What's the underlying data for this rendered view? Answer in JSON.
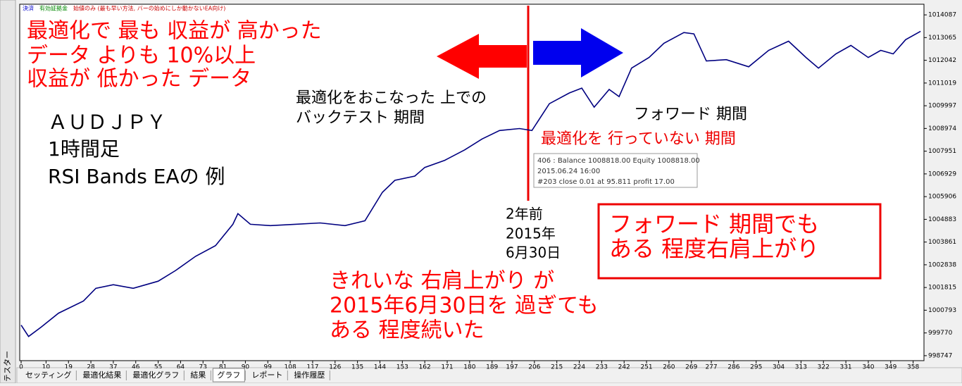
{
  "header": [
    {
      "text": "決済",
      "color": "#0000cc"
    },
    {
      "text": "有効証拠金",
      "color": "#008800"
    },
    {
      "text": "始値のみ (最も早い方法, バーの始めにしか動かないEA向け)",
      "color": "#cc0000"
    }
  ],
  "side_label": "テスター",
  "chart_data": {
    "type": "line",
    "color": "#000080",
    "x": [
      0,
      3,
      8,
      15,
      25,
      30,
      37,
      45,
      55,
      62,
      70,
      78,
      85,
      87,
      92,
      100,
      110,
      120,
      130,
      138,
      145,
      150,
      158,
      162,
      170,
      178,
      185,
      192,
      200,
      205,
      212,
      220,
      225,
      230,
      236,
      240,
      245,
      252,
      258,
      266,
      270,
      275,
      283,
      292,
      300,
      308,
      315,
      320,
      327,
      333,
      340,
      345,
      350,
      355,
      361
    ],
    "values": [
      1000120,
      999610,
      1000030,
      1000660,
      1001210,
      1001780,
      1001940,
      1001780,
      1002100,
      1002580,
      1003220,
      1003700,
      1004660,
      1005140,
      1004660,
      1004600,
      1004660,
      1004720,
      1004600,
      1004820,
      1006100,
      1006640,
      1006830,
      1007220,
      1007540,
      1008010,
      1008500,
      1008880,
      1008970,
      1008880,
      1010090,
      1010570,
      1010790,
      1009930,
      1010730,
      1010410,
      1011690,
      1012170,
      1012810,
      1013290,
      1013230,
      1012010,
      1012070,
      1011750,
      1012490,
      1012900,
      1012170,
      1011690,
      1012330,
      1012710,
      1012170,
      1012490,
      1012330,
      1012970,
      1013350
    ],
    "xlim": [
      0,
      361.5
    ],
    "ylim": [
      998523,
      1014566
    ],
    "xticks": [
      0,
      10,
      19,
      28,
      37,
      46,
      55,
      64,
      73,
      81,
      90,
      99,
      108,
      117,
      126,
      135,
      144,
      153,
      162,
      171,
      180,
      189,
      197,
      206,
      215,
      224,
      233,
      242,
      251,
      260,
      269,
      277,
      286,
      295,
      304,
      313,
      322,
      331,
      340,
      349,
      358
    ],
    "yticks": [
      1014087,
      1013065,
      1012042,
      1011019,
      1009997,
      1008974,
      1007951,
      1006929,
      1005906,
      1004883,
      1003861,
      1002838,
      1001815,
      1000793,
      999770,
      998747
    ],
    "annotations": [
      {
        "lines": [
          "最適化で 最も 収益が 高かった",
          "データ よりも 10%以上",
          "収益が 低かった データ"
        ]
      },
      {
        "lines": [
          "最適化をおこなった 上での",
          "バックテスト 期間"
        ]
      },
      {
        "lines": [
          "ＡＵＤＪＰＹ",
          "1時間足",
          "RSI Bands EAの 例"
        ]
      },
      {
        "lines": [
          "フォワード 期間"
        ]
      },
      {
        "lines": [
          "最適化を 行っていない 期間"
        ]
      },
      {
        "lines": [
          "2年前",
          "2015年",
          "6月30日"
        ]
      },
      {
        "lines": [
          "フォワード 期間でも",
          "ある 程度右肩上がり"
        ]
      },
      {
        "lines": [
          "きれいな 右肩上がり が",
          "2015年6月30日を 過ぎても",
          "ある 程度続いた"
        ]
      }
    ],
    "tooltip": [
      "406 : Balance 1008818.00 Equity 1008818.00",
      "2015.06.24 16:00",
      "#203 close 0.01 at 95.811 profit 17.00"
    ]
  },
  "tabs": [
    "セッティング",
    "最適化結果",
    "最適化グラフ",
    "結果",
    "グラフ",
    "レポート",
    "操作履歴"
  ]
}
